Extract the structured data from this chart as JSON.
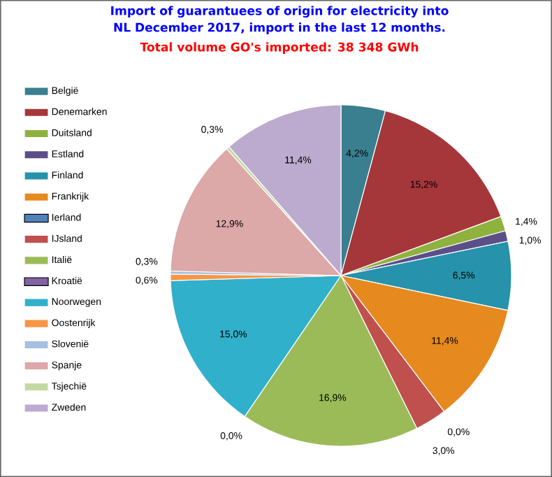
{
  "chart_data": {
    "type": "pie",
    "title": "Import of guarantuees of origin for electricity into NL December 2017, import in the last 12 months.",
    "subtitle": "Total volume GO's imported: 38 348 GWh",
    "categories": [
      "België",
      "Denemarken",
      "Duitsland",
      "Estland",
      "Finland",
      "Frankrijk",
      "Ierland",
      "IJsland",
      "Italië",
      "Kroatië",
      "Noorwegen",
      "Oostenrijk",
      "Slovenië",
      "Spanje",
      "Tsjechië",
      "Zweden"
    ],
    "values": [
      4.2,
      15.2,
      1.4,
      1.0,
      6.5,
      11.4,
      0.0,
      3.0,
      16.9,
      0.0,
      15.0,
      0.6,
      0.3,
      12.9,
      0.3,
      11.4
    ],
    "colors": [
      "#3a7f8f",
      "#a5373a",
      "#8fb23f",
      "#5c4e88",
      "#2792ab",
      "#e6891f",
      "#4f81bd",
      "#c0504d",
      "#9bbb59",
      "#8064a2",
      "#31b0cc",
      "#f79646",
      "#a6c0e0",
      "#dca8a8",
      "#c4d8a4",
      "#bcabcf"
    ],
    "value_labels": [
      "4,2%",
      "15,2%",
      "1,4%",
      "1,0%",
      "6,5%",
      "11,4%",
      "0,0%",
      "3,0%",
      "16,9%",
      "0,0%",
      "15,0%",
      "0,6%",
      "0,3%",
      "12,9%",
      "0,3%",
      "11,4%"
    ],
    "legend": "left"
  }
}
